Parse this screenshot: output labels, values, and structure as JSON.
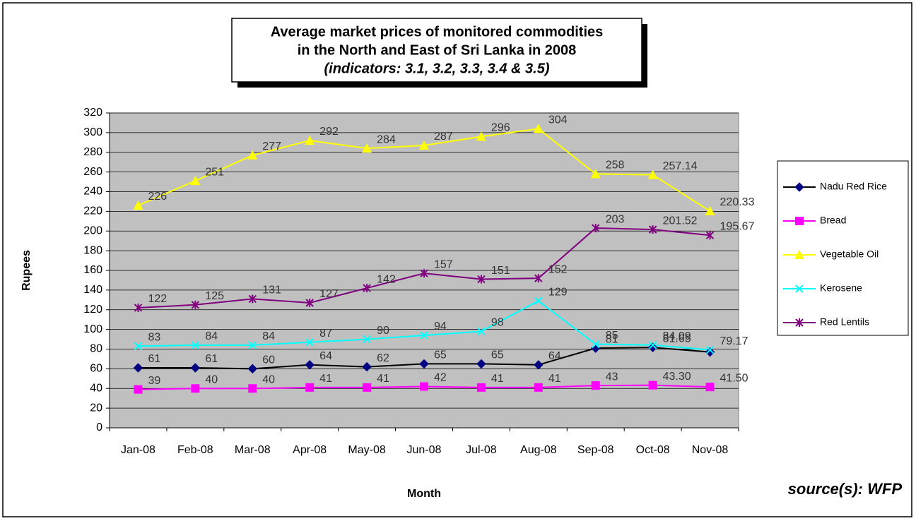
{
  "chart_data": {
    "type": "line",
    "title": [
      "Average market prices of monitored commodities",
      "in the North and East of Sri Lanka in 2008"
    ],
    "subtitle": "(indicators: 3.1, 3.2, 3.3, 3.4 & 3.5)",
    "x_label": "Month",
    "y_label": "Rupees",
    "source": "source(s): WFP",
    "categories": [
      "Jan-08",
      "Feb-08",
      "Mar-08",
      "Apr-08",
      "May-08",
      "Jun-08",
      "Jul-08",
      "Aug-08",
      "Sep-08",
      "Oct-08",
      "Nov-08"
    ],
    "ylim": [
      0,
      320
    ],
    "yticks": [
      0,
      20,
      40,
      60,
      80,
      100,
      120,
      140,
      160,
      180,
      200,
      220,
      240,
      260,
      280,
      300,
      320
    ],
    "grid": true,
    "legend": "right",
    "series": [
      {
        "name": "Nadu Red Rice",
        "color": "#000080",
        "line_color": "#000000",
        "marker": "diamond",
        "values": [
          61,
          61,
          60,
          64,
          62,
          65,
          65,
          64,
          81,
          81.65,
          77
        ],
        "value_labels": [
          "61",
          "61",
          "60",
          "64",
          "62",
          "65",
          "65",
          "64",
          "81",
          "81.65",
          null
        ]
      },
      {
        "name": "Bread",
        "color": "#ff00ff",
        "line_color": "#ff00ff",
        "marker": "square",
        "values": [
          39,
          40,
          40,
          41,
          41,
          42,
          41,
          41,
          43,
          43.3,
          41.5
        ],
        "value_labels": [
          "39",
          "40",
          "40",
          "41",
          "41",
          "42",
          "41",
          "41",
          "43",
          "43.30",
          "41.50"
        ]
      },
      {
        "name": "Vegetable Oil",
        "color": "#ffff00",
        "line_color": "#ffff00",
        "marker": "triangle",
        "values": [
          226,
          251,
          277,
          292,
          284,
          287,
          296,
          304,
          258,
          257.14,
          220.33
        ]
      },
      {
        "name": "Kerosene",
        "color": "#00ffff",
        "line_color": "#00ffff",
        "marker": "x",
        "values": [
          83,
          84,
          84,
          87,
          90,
          94,
          98,
          129,
          85,
          84.09,
          79.17
        ]
      },
      {
        "name": "Red Lentils",
        "color": "#800080",
        "line_color": "#800080",
        "marker": "star",
        "values": [
          122,
          125,
          131,
          127,
          142,
          157,
          151,
          152,
          203,
          201.52,
          195.67
        ]
      }
    ]
  }
}
